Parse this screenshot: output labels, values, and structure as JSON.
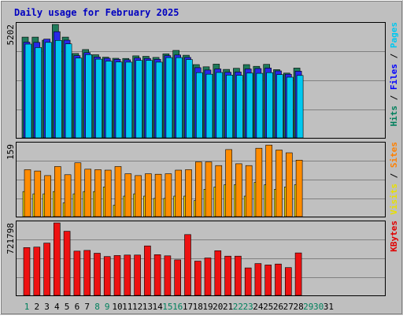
{
  "chart_data": {
    "type": "bar",
    "title": "Daily usage for February 2025",
    "x": [
      "1",
      "2",
      "3",
      "4",
      "5",
      "6",
      "7",
      "8",
      "9",
      "10",
      "11",
      "12",
      "13",
      "14",
      "15",
      "16",
      "17",
      "18",
      "19",
      "20",
      "21",
      "22",
      "23",
      "24",
      "25",
      "26",
      "27",
      "28",
      "29",
      "30",
      "31"
    ],
    "x_colors": [
      "#00805c",
      "#000000",
      "#000000",
      "#000000",
      "#000000",
      "#000000",
      "#000000",
      "#00805c",
      "#00805c",
      "#000000",
      "#000000",
      "#000000",
      "#000000",
      "#000000",
      "#00805c",
      "#00805c",
      "#000000",
      "#000000",
      "#000000",
      "#000000",
      "#000000",
      "#00805c",
      "#00805c",
      "#000000",
      "#000000",
      "#000000",
      "#000000",
      "#000000",
      "#00805c",
      "#00805c",
      "#000000"
    ],
    "panels": [
      {
        "ymax_label": "5202",
        "ymax": 5202,
        "legend": [
          {
            "text": "Pages",
            "color": "#00c8f0"
          },
          {
            "text": " / ",
            "color": "#000000"
          },
          {
            "text": "Files",
            "color": "#0000ff"
          },
          {
            "text": " / ",
            "color": "#000000"
          },
          {
            "text": "Hits",
            "color": "#00805c"
          }
        ],
        "series": [
          {
            "name": "Hits",
            "color": "#1e7a5a",
            "values": [
              4620,
              4620,
              4480,
              5202,
              4620,
              3870,
              4050,
              3810,
              3700,
              3650,
              3640,
              3760,
              3740,
              3690,
              3850,
              4010,
              3790,
              3360,
              3260,
              3380,
              3140,
              3190,
              3360,
              3280,
              3370,
              3130,
              2970,
              3200
            ]
          },
          {
            "name": "Files",
            "color": "#2828e8",
            "values": [
              4390,
              4380,
              4530,
              4870,
              4480,
              3770,
              3910,
              3710,
              3650,
              3600,
              3580,
              3660,
              3640,
              3600,
              3770,
              3800,
              3690,
              3220,
              3110,
              3160,
              3010,
              3020,
              3160,
              3180,
              3200,
              3070,
              2920,
              3060
            ]
          },
          {
            "name": "Pages",
            "color": "#00c8f0",
            "values": [
              4300,
              4140,
              4380,
              4470,
              4310,
              3660,
              3820,
              3610,
              3520,
              3480,
              3470,
              3550,
              3550,
              3470,
              3680,
              3680,
              3590,
              2990,
              2920,
              3000,
              2880,
              2870,
              2970,
              2960,
              2990,
              2900,
              2780,
              2860
            ]
          }
        ]
      },
      {
        "ymax_label": "159",
        "ymax": 159,
        "legend": [
          {
            "text": "Sites",
            "color": "#ff8000"
          },
          {
            "text": " / ",
            "color": "#000000"
          },
          {
            "text": "Visits",
            "color": "#e8e000"
          }
        ],
        "series": [
          {
            "name": "Visits",
            "color": "#f5e000",
            "values": [
              55,
              50,
              50,
              55,
              30,
              50,
              55,
              55,
              65,
              25,
              45,
              50,
              45,
              40,
              40,
              45,
              45,
              35,
              60,
              65,
              70,
              70,
              45,
              75,
              70,
              60,
              65,
              70
            ]
          },
          {
            "name": "Sites",
            "color": "#ff8c00",
            "values": [
              103,
              100,
              90,
              110,
              92,
              118,
              104,
              103,
              102,
              110,
              94,
              90,
              94,
              93,
              94,
              102,
              103,
              120,
              120,
              112,
              147,
              116,
              112,
              150,
              157,
              146,
              140,
              124
            ]
          }
        ]
      },
      {
        "ymax_label": "721798",
        "ymax": 721798,
        "legend": [
          {
            "text": "KBytes",
            "color": "#e00000"
          }
        ],
        "series": [
          {
            "name": "KBytes",
            "color": "#ee1111",
            "values": [
              476000,
              481000,
              521000,
              721798,
              639000,
              441000,
              448000,
              420000,
              387000,
              397000,
              402000,
              402000,
              493000,
              406000,
              394000,
              354000,
              606000,
              341000,
              373000,
              445000,
              391000,
              391000,
              274000,
              317000,
              303000,
              312000,
              277000,
              423000
            ]
          }
        ]
      }
    ]
  }
}
